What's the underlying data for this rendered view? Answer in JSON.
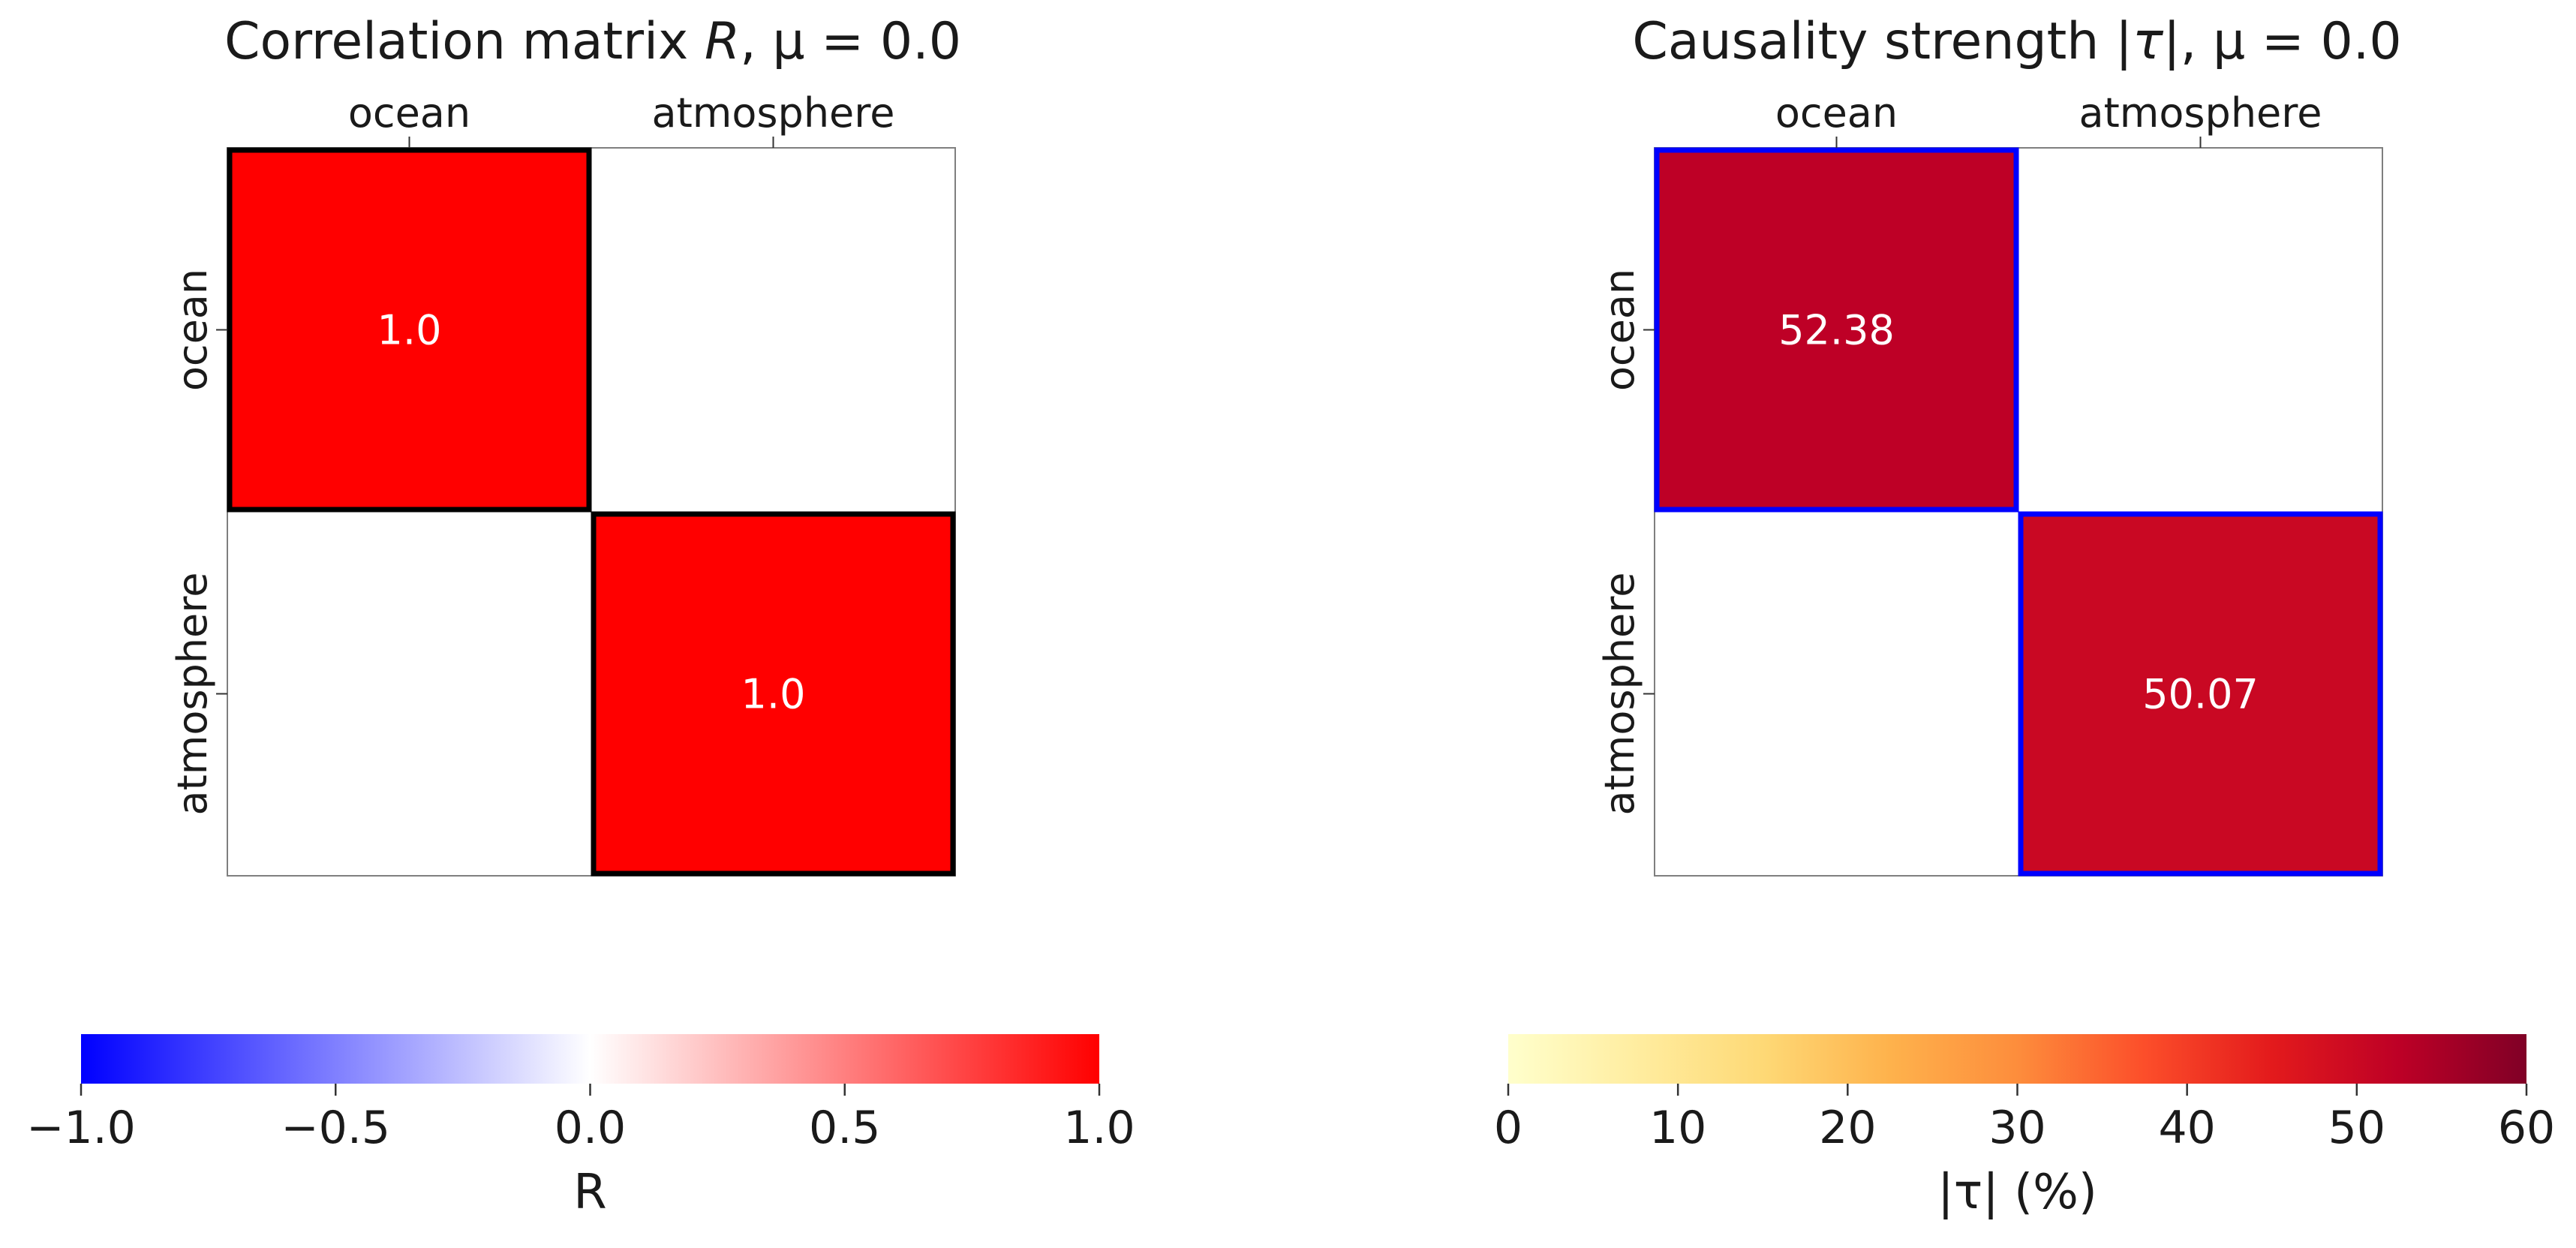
{
  "chart_data": [
    {
      "type": "heatmap",
      "title": "Correlation matrix R, μ = 0.0",
      "title_parts": {
        "prefix": "Correlation matrix ",
        "symbol": "R",
        "rest": ", μ = 0.0"
      },
      "categories": [
        "ocean",
        "atmosphere"
      ],
      "rows": [
        "ocean",
        "atmosphere"
      ],
      "values": [
        [
          1.0,
          null
        ],
        [
          null,
          1.0
        ]
      ],
      "cell_labels": [
        [
          "1.0",
          null
        ],
        [
          null,
          "1.0"
        ]
      ],
      "colormap": "bwr",
      "vmin": -1.0,
      "vmax": 1.0,
      "colors": {
        "low": "#0000ff",
        "mid": "#ffffff",
        "high": "#ff0000",
        "highlight_edge": "#000000"
      },
      "colorbar": {
        "label": "R",
        "ticks": [
          -1.0,
          -0.5,
          0.0,
          0.5,
          1.0
        ],
        "tick_labels": [
          "−1.0",
          "−0.5",
          "0.0",
          "0.5",
          "1.0"
        ]
      },
      "grid": false
    },
    {
      "type": "heatmap",
      "title": "Causality strength |τ|, μ = 0.0",
      "title_parts": {
        "prefix": "Causality strength |",
        "symbol": "τ",
        "rest": "|, μ = 0.0"
      },
      "categories": [
        "ocean",
        "atmosphere"
      ],
      "rows": [
        "ocean",
        "atmosphere"
      ],
      "values": [
        [
          52.38,
          null
        ],
        [
          null,
          50.07
        ]
      ],
      "cell_labels": [
        [
          "52.38",
          null
        ],
        [
          null,
          "50.07"
        ]
      ],
      "colormap": "YlOrRd",
      "vmin": 0,
      "vmax": 60,
      "colors": {
        "highlight_edge": "#0000ff"
      },
      "colorbar": {
        "label": "|τ| (%)",
        "ticks": [
          0,
          10,
          20,
          30,
          40,
          50,
          60
        ],
        "tick_labels": [
          "0",
          "10",
          "20",
          "30",
          "40",
          "50",
          "60"
        ]
      },
      "grid": false
    }
  ]
}
